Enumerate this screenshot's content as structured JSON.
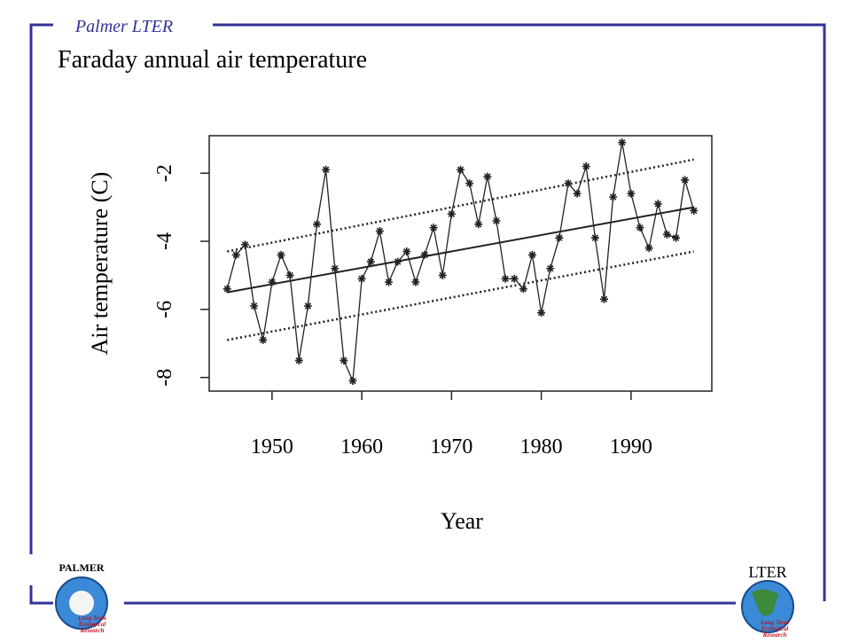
{
  "header": {
    "brand": "Palmer LTER",
    "title": "Faraday annual air temperature"
  },
  "logos": {
    "left_label": "PALMER",
    "left_caption": [
      "Long Term",
      "Ecological",
      "Research"
    ],
    "right_label": "LTER",
    "right_caption": [
      "Long Term",
      "Ecological",
      "Research"
    ]
  },
  "chart_data": {
    "type": "line",
    "xlabel": "Year",
    "ylabel": "Air temperature (C)",
    "x": [
      1945,
      1946,
      1947,
      1948,
      1949,
      1950,
      1951,
      1952,
      1953,
      1954,
      1955,
      1956,
      1957,
      1958,
      1959,
      1960,
      1961,
      1962,
      1963,
      1964,
      1965,
      1966,
      1967,
      1968,
      1969,
      1970,
      1971,
      1972,
      1973,
      1974,
      1975,
      1976,
      1977,
      1978,
      1979,
      1980,
      1981,
      1982,
      1983,
      1984,
      1985,
      1986,
      1987,
      1988,
      1989,
      1990,
      1991,
      1992,
      1993,
      1994,
      1995,
      1996,
      1997
    ],
    "series": [
      {
        "color": "#222222",
        "marker": "asterisk",
        "values": [
          -5.4,
          -4.4,
          -4.1,
          -5.9,
          -6.9,
          -5.2,
          -4.4,
          -5.0,
          -7.5,
          -5.9,
          -3.5,
          -1.9,
          -4.8,
          -7.5,
          -8.1,
          -5.1,
          -4.6,
          -3.7,
          -5.2,
          -4.6,
          -4.3,
          -5.2,
          -4.4,
          -3.6,
          -5.0,
          -3.2,
          -1.9,
          -2.3,
          -3.5,
          -2.1,
          -3.4,
          -5.1,
          -5.1,
          -5.4,
          -4.4,
          -6.1,
          -4.8,
          -3.9,
          -2.3,
          -2.6,
          -1.8,
          -3.9,
          -5.7,
          -2.7,
          -1.1,
          -2.6,
          -3.6,
          -4.2,
          -2.9,
          -3.8,
          -3.9,
          -2.2,
          -3.1
        ]
      }
    ],
    "lines": [
      {
        "style": "solid",
        "color": "#222222",
        "x": [
          1945,
          1997
        ],
        "values": [
          -5.5,
          -3.0
        ]
      },
      {
        "style": "dotted",
        "color": "#222222",
        "x": [
          1945,
          1997
        ],
        "values": [
          -4.3,
          -1.6
        ]
      },
      {
        "style": "dotted",
        "color": "#222222",
        "x": [
          1945,
          1997
        ],
        "values": [
          -6.9,
          -4.3
        ]
      }
    ],
    "xlim": [
      1943,
      1999
    ],
    "ylim": [
      -8.4,
      -0.9
    ],
    "xticks": [
      1950,
      1960,
      1970,
      1980,
      1990
    ],
    "yticks": [
      -8,
      -6,
      -4,
      -2
    ],
    "grid": false
  }
}
